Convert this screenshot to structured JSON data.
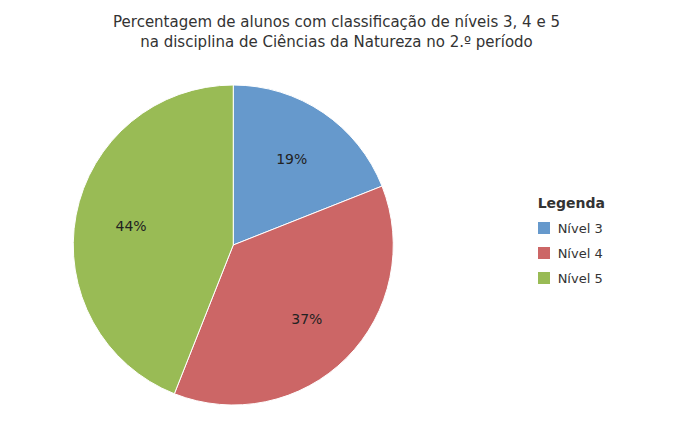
{
  "chart_data": {
    "type": "pie",
    "title": "Percentagem de alunos com classificação de níveis 3, 4 e 5\nna disciplina de Ciências da Natureza no 2.º período",
    "categories": [
      "Nível 3",
      "Nível 4",
      "Nível 5"
    ],
    "values": [
      19,
      37,
      44
    ],
    "value_labels": [
      "19%",
      "37%",
      "44%"
    ],
    "colors": [
      "#6699CC",
      "#CC6666",
      "#99BB55"
    ],
    "data_labels": true,
    "legend": "right",
    "legend_title": "Legenda"
  }
}
